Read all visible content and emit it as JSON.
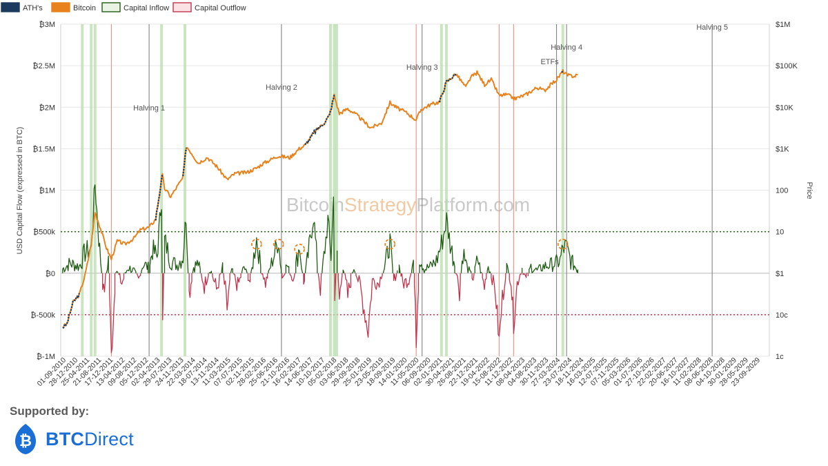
{
  "legend": [
    {
      "label": "ATH's",
      "color": "#1c3a5e",
      "fill": "#1c3a5e"
    },
    {
      "label": "Bitcoin",
      "color": "#e8821c",
      "fill": "#e8821c"
    },
    {
      "label": "Capital Inflow",
      "color": "#1e5c12",
      "fill": "#e9f4e4"
    },
    {
      "label": "Capital Outflow",
      "color": "#c0334d",
      "fill": "#fbe1e4"
    }
  ],
  "watermark": {
    "part1": "Bitcoin",
    "part2": "Strategy",
    "part3": "Platform.com"
  },
  "footer": {
    "supported_by": "Supported by:",
    "logo_bold": "BTC",
    "logo_light": "Direct"
  },
  "chart_data": {
    "type": "line",
    "ylabel": "USD Capital Flow (expressed in BTC)",
    "y2label": "Price",
    "y_left_ticks": [
      "₿3M",
      "₿2.5M",
      "₿2M",
      "₿1.5M",
      "₿1M",
      "₿500k",
      "₿0",
      "₿-500k",
      "₿-1M"
    ],
    "y_left_range": [
      -1000000,
      3000000
    ],
    "y_right_ticks": [
      "$1M",
      "$100K",
      "$10K",
      "$1K",
      "100",
      "10",
      "$1",
      "10c",
      "1c"
    ],
    "y_right_log_range": [
      0.01,
      1000000
    ],
    "x_tick_labels": [
      "01-09-2010",
      "28-12-2010",
      "25-04-2011",
      "21-08-2011",
      "17-12-2011",
      "13-04-2012",
      "09-08-2012",
      "05-12-2012",
      "02-04-2013",
      "29-07-2013",
      "24-11-2013",
      "22-03-2014",
      "18-07-2014",
      "13-11-2014",
      "11-03-2015",
      "07-07-2015",
      "02-11-2015",
      "28-02-2016",
      "25-06-2016",
      "21-10-2016",
      "16-02-2017",
      "14-06-2017",
      "10-10-2017",
      "05-02-2018",
      "03-06-2018",
      "29-09-2018",
      "25-01-2019",
      "23-05-2019",
      "18-09-2019",
      "14-01-2020",
      "11-05-2020",
      "06-09-2020",
      "02-01-2021",
      "30-04-2021",
      "26-08-2021",
      "22-12-2021",
      "19-04-2022",
      "15-08-2022",
      "11-12-2022",
      "08-04-2023",
      "04-08-2023",
      "30-11-2023",
      "27-03-2024",
      "23-07-2024",
      "18-11-2024",
      "16-03-2025",
      "12-07-2025",
      "07-11-2025",
      "05-03-2026",
      "01-07-2026",
      "27-10-2026",
      "22-02-2027",
      "20-06-2027",
      "16-10-2027",
      "11-02-2028",
      "08-06-2028",
      "04-10-2028",
      "30-01-2029",
      "28-05-2029",
      "23-09-2029"
    ],
    "reference_lines": [
      {
        "value": 500000,
        "color": "#1e5c12",
        "style": "dotted"
      },
      {
        "value": -500000,
        "color": "#c0334d",
        "style": "dotted"
      }
    ],
    "annotations": [
      {
        "label": "Halving 1",
        "date": "2012-11-28"
      },
      {
        "label": "Halving 2",
        "date": "2016-07-09"
      },
      {
        "label": "Halving 3",
        "date": "2020-05-11"
      },
      {
        "label": "Halving 4",
        "date": "2024-04-20"
      },
      {
        "label": "ETFs",
        "date": "2024-01-11"
      },
      {
        "label": "Halving 5",
        "date": "2028-04-10"
      }
    ],
    "bitcoin_price_series": {
      "name": "Bitcoin",
      "dates": [
        "2010-07-20",
        "2010-09-01",
        "2010-11-01",
        "2011-01-01",
        "2011-03-01",
        "2011-05-01",
        "2011-06-08",
        "2011-08-01",
        "2011-10-01",
        "2011-11-18",
        "2012-01-15",
        "2012-04-01",
        "2012-07-01",
        "2012-09-01",
        "2012-12-01",
        "2013-02-01",
        "2013-04-09",
        "2013-05-01",
        "2013-07-01",
        "2013-09-01",
        "2013-11-01",
        "2013-12-04",
        "2014-01-15",
        "2014-04-01",
        "2014-07-01",
        "2014-10-01",
        "2015-01-14",
        "2015-04-01",
        "2015-08-01",
        "2015-11-01",
        "2016-01-01",
        "2016-06-01",
        "2016-10-01",
        "2017-01-01",
        "2017-03-01",
        "2017-06-01",
        "2017-09-01",
        "2017-11-01",
        "2017-12-17",
        "2018-02-06",
        "2018-05-01",
        "2018-08-01",
        "2018-11-01",
        "2018-12-15",
        "2019-04-01",
        "2019-06-26",
        "2019-09-01",
        "2019-12-15",
        "2020-03-13",
        "2020-05-01",
        "2020-08-01",
        "2020-11-01",
        "2021-01-08",
        "2021-04-14",
        "2021-07-20",
        "2021-09-07",
        "2021-11-10",
        "2022-01-24",
        "2022-04-01",
        "2022-06-18",
        "2022-09-01",
        "2022-11-21",
        "2023-03-10",
        "2023-07-01",
        "2023-09-11",
        "2023-12-01",
        "2024-01-11",
        "2024-03-14",
        "2024-05-01",
        "2024-07-05",
        "2024-08-10"
      ],
      "values": [
        0.05,
        0.06,
        0.2,
        0.3,
        0.9,
        5,
        30,
        12,
        4,
        2.2,
        6,
        5,
        7,
        11,
        13,
        20,
        230,
        110,
        70,
        120,
        200,
        1150,
        850,
        450,
        620,
        380,
        180,
        250,
        270,
        340,
        430,
        670,
        610,
        1000,
        1200,
        2500,
        4000,
        6500,
        19500,
        7000,
        9200,
        6400,
        4000,
        3200,
        4100,
        13000,
        9700,
        7200,
        4900,
        8800,
        11500,
        13500,
        40000,
        64000,
        30000,
        52000,
        68000,
        35000,
        46000,
        19000,
        20000,
        16000,
        20000,
        30000,
        25000,
        38000,
        46000,
        73000,
        58000,
        56000,
        60000
      ],
      "ath_ranges": [
        [
          "2010-07-20",
          "2011-01-01"
        ],
        [
          "2013-02-01",
          "2013-04-09"
        ],
        [
          "2013-11-01",
          "2013-12-04"
        ],
        [
          "2017-03-01",
          "2017-12-17"
        ],
        [
          "2020-11-01",
          "2021-04-14"
        ],
        [
          "2021-11-05",
          "2021-11-10"
        ],
        [
          "2024-03-01",
          "2024-03-14"
        ]
      ]
    },
    "capital_flow_series": {
      "name": "Capital Flow",
      "dates": [
        "2010-07-20",
        "2010-10-01",
        "2011-01-01",
        "2011-03-01",
        "2011-05-01",
        "2011-06-08",
        "2011-07-15",
        "2011-09-01",
        "2011-10-20",
        "2011-11-18",
        "2012-01-01",
        "2012-03-01",
        "2012-05-01",
        "2012-07-01",
        "2012-08-15",
        "2012-10-01",
        "2012-11-28",
        "2013-01-01",
        "2013-02-15",
        "2013-04-01",
        "2013-04-12",
        "2013-05-01",
        "2013-07-01",
        "2013-09-01",
        "2013-11-01",
        "2013-12-01",
        "2014-01-01",
        "2014-02-15",
        "2014-04-01",
        "2014-06-01",
        "2014-08-01",
        "2014-10-01",
        "2014-12-01",
        "2015-01-14",
        "2015-03-01",
        "2015-05-01",
        "2015-07-01",
        "2015-09-01",
        "2015-11-04",
        "2015-12-15",
        "2016-02-01",
        "2016-04-01",
        "2016-06-10",
        "2016-07-15",
        "2016-09-01",
        "2016-11-01",
        "2017-01-05",
        "2017-02-15",
        "2017-04-01",
        "2017-05-25",
        "2017-07-01",
        "2017-08-01",
        "2017-09-15",
        "2017-10-15",
        "2017-11-15",
        "2017-12-10",
        "2017-12-22",
        "2018-01-15",
        "2018-02-06",
        "2018-03-15",
        "2018-05-01",
        "2018-07-01",
        "2018-09-01",
        "2018-11-20",
        "2019-01-01",
        "2019-03-01",
        "2019-05-01",
        "2019-06-26",
        "2019-08-01",
        "2019-09-25",
        "2019-11-01",
        "2020-01-01",
        "2020-02-15",
        "2020-03-13",
        "2020-04-15",
        "2020-06-01",
        "2020-08-01",
        "2020-10-01",
        "2020-12-01",
        "2021-01-10",
        "2021-02-15",
        "2021-04-01",
        "2021-05-19",
        "2021-06-22",
        "2021-08-01",
        "2021-10-01",
        "2021-11-15",
        "2022-01-22",
        "2022-03-01",
        "2022-05-10",
        "2022-06-18",
        "2022-07-20",
        "2022-09-01",
        "2022-10-15",
        "2022-11-09",
        "2022-12-15",
        "2023-02-01",
        "2023-03-15",
        "2023-05-01",
        "2023-07-01",
        "2023-09-01",
        "2023-11-01",
        "2024-01-01",
        "2024-02-15",
        "2024-03-14",
        "2024-04-15",
        "2024-06-01",
        "2024-07-15",
        "2024-08-10"
      ],
      "values": [
        50000,
        120000,
        80000,
        250000,
        300000,
        1080000,
        420000,
        -250000,
        180000,
        -1000000,
        60000,
        -120000,
        70000,
        30000,
        -80000,
        120000,
        60000,
        280000,
        200000,
        900000,
        -620000,
        400000,
        150000,
        100000,
        200000,
        700000,
        -250000,
        80000,
        120000,
        -150000,
        60000,
        -200000,
        70000,
        -420000,
        50000,
        -160000,
        80000,
        -100000,
        420000,
        80000,
        -120000,
        120000,
        400000,
        -60000,
        100000,
        -80000,
        330000,
        -130000,
        220000,
        700000,
        100000,
        -180000,
        300000,
        640000,
        200000,
        900000,
        -300000,
        200000,
        -320000,
        100000,
        -280000,
        80000,
        -160000,
        -700000,
        -80000,
        -120000,
        60000,
        380000,
        -100000,
        80000,
        -120000,
        -80000,
        150000,
        -780000,
        200000,
        50000,
        80000,
        150000,
        400000,
        650000,
        350000,
        120000,
        -200000,
        250000,
        80000,
        -60000,
        180000,
        -160000,
        100000,
        -200000,
        -820000,
        -300000,
        80000,
        -100000,
        -590000,
        -120000,
        60000,
        -80000,
        80000,
        30000,
        80000,
        100000,
        120000,
        150000,
        300000,
        320000,
        150000,
        80000,
        40000
      ],
      "inflow_highlight_dates": [
        "2011-02-01",
        "2011-05-01",
        "2011-06-08",
        "2013-04-01",
        "2013-11-20",
        "2017-11-10",
        "2017-12-17",
        "2018-01-10",
        "2020-11-20",
        "2021-01-08",
        "2024-03-14"
      ]
    },
    "highlight_markers": [
      {
        "date": "2015-11-04",
        "value": 350000
      },
      {
        "date": "2016-06-10",
        "value": 350000
      },
      {
        "date": "2017-01-05",
        "value": 290000
      },
      {
        "date": "2019-06-26",
        "value": 350000
      },
      {
        "date": "2024-03-14",
        "value": 350000
      }
    ],
    "outflow_highlight_dates": [
      "2011-11-18",
      "2020-03-13",
      "2022-06-18",
      "2022-11-09"
    ],
    "grid": true
  }
}
